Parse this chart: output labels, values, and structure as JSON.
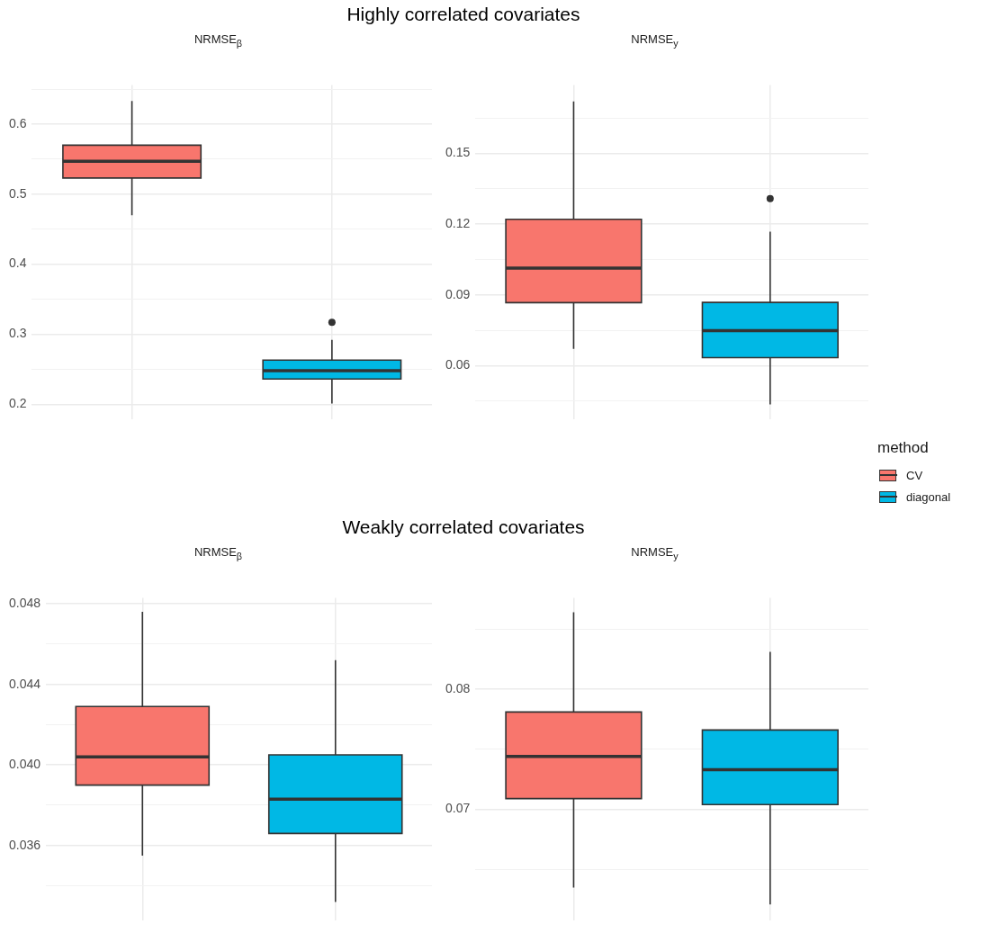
{
  "chart_data": [
    {
      "type": "box",
      "title": "Highly correlated covariates",
      "subtitle": "NRMSE$_{β}$",
      "categories": [
        null,
        null
      ],
      "ylim": [
        0.179,
        0.656
      ],
      "yticks": [
        0.2,
        {
          "value": 0.25,
          "label": null
        },
        0.3,
        {
          "value": 0.35,
          "label": null
        },
        0.4,
        {
          "value": 0.45,
          "label": null
        },
        0.5,
        {
          "value": 0.55,
          "label": null
        },
        0.6,
        {
          "value": 0.65,
          "label": null
        }
      ],
      "grid": true,
      "tick_labels": "y",
      "legend": "right",
      "legend_title": "method",
      "series": [
        {
          "name": "CV",
          "color": "#f8766d",
          "boxes": [
            {
              "low": 0.47,
              "q1": 0.523,
              "median": 0.547,
              "q3": 0.57,
              "high": 0.633
            },
            null
          ]
        },
        {
          "name": "diagonal",
          "color": "#00b8e5",
          "boxes": [
            null,
            {
              "low": 0.201,
              "q1": 0.236,
              "median": 0.248,
              "q3": 0.263,
              "high": 0.292,
              "outliers": [
                0.317
              ]
            }
          ]
        }
      ]
    },
    {
      "type": "box",
      "subtitle": "NRMSE$_{y}$",
      "categories": [
        null,
        null
      ],
      "ylim": [
        0.0374,
        0.179
      ],
      "yticks": [
        {
          "value": 0.045,
          "label": null
        },
        0.06,
        {
          "value": 0.075,
          "label": null
        },
        0.09,
        {
          "value": 0.105,
          "label": null
        },
        0.12,
        {
          "value": 0.135,
          "label": null
        },
        0.15,
        {
          "value": 0.165,
          "label": null
        }
      ],
      "grid": true,
      "tick_labels": "y",
      "series": [
        {
          "color": "#f8766d",
          "boxes": [
            {
              "low": 0.0671,
              "q1": 0.0867,
              "median": 0.1013,
              "q3": 0.122,
              "high": 0.172
            },
            null
          ]
        },
        {
          "color": "#00b8e5",
          "boxes": [
            null,
            {
              "low": 0.0435,
              "q1": 0.0634,
              "median": 0.0748,
              "q3": 0.0868,
              "high": 0.1168,
              "outliers": [
                0.1308
              ]
            }
          ]
        }
      ]
    },
    {
      "type": "box",
      "title": "Weakly correlated covariates",
      "subtitle": "NRMSE$_{β}$",
      "categories": [
        null,
        null
      ],
      "ylim": [
        0.0323,
        0.0483
      ],
      "yticks": [
        {
          "value": 0.034,
          "label": null
        },
        0.036,
        {
          "value": 0.038,
          "label": null
        },
        {
          "value": 0.04,
          "label": "0.040"
        },
        {
          "value": 0.042,
          "label": null
        },
        0.044,
        {
          "value": 0.046,
          "label": null
        },
        0.048
      ],
      "grid": true,
      "tick_labels": "y",
      "series": [
        {
          "color": "#f8766d",
          "boxes": [
            {
              "low": 0.0355,
              "q1": 0.039,
              "median": 0.0404,
              "q3": 0.0429,
              "high": 0.0476
            },
            null
          ]
        },
        {
          "color": "#00b8e5",
          "boxes": [
            null,
            {
              "low": 0.0332,
              "q1": 0.0366,
              "median": 0.0383,
              "q3": 0.0405,
              "high": 0.0452
            }
          ]
        }
      ]
    },
    {
      "type": "box",
      "subtitle": "NRMSE$_{y}$",
      "categories": [
        null,
        null
      ],
      "ylim": [
        0.0608,
        0.0876
      ],
      "yticks": [
        {
          "value": 0.065,
          "label": null
        },
        0.07,
        {
          "value": 0.075,
          "label": null
        },
        0.08,
        {
          "value": 0.085,
          "label": null
        }
      ],
      "grid": true,
      "tick_labels": "y",
      "series": [
        {
          "color": "#f8766d",
          "boxes": [
            {
              "low": 0.0635,
              "q1": 0.0709,
              "median": 0.0744,
              "q3": 0.0781,
              "high": 0.0864
            },
            null
          ]
        },
        {
          "color": "#00b8e5",
          "boxes": [
            null,
            {
              "low": 0.0621,
              "q1": 0.0704,
              "median": 0.0733,
              "q3": 0.0766,
              "high": 0.0831
            }
          ]
        }
      ]
    }
  ]
}
